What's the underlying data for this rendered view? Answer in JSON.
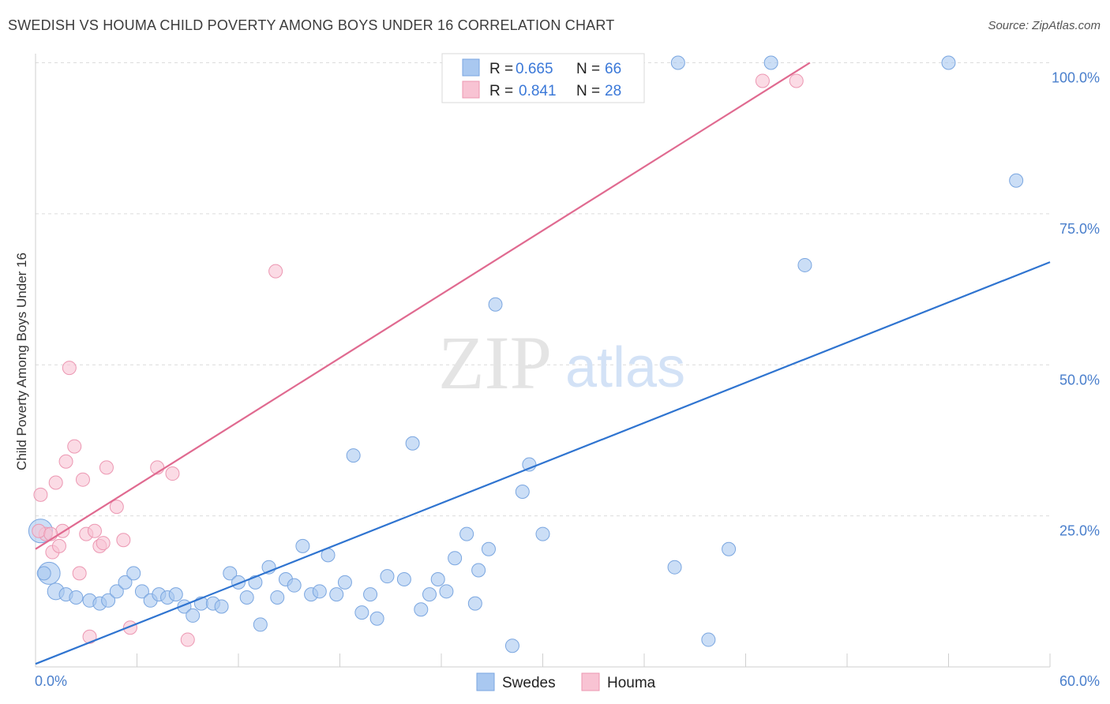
{
  "title": "SWEDISH VS HOUMA CHILD POVERTY AMONG BOYS UNDER 16 CORRELATION CHART",
  "source": "Source: ZipAtlas.com",
  "watermark": {
    "zip": "ZIP",
    "atlas": "atlas"
  },
  "chart_data": {
    "type": "scatter",
    "xlabel": "",
    "ylabel": "Child Poverty Among Boys Under 16",
    "xlim": [
      0,
      60
    ],
    "ylim": [
      0,
      100
    ],
    "x_tick_labels": [
      "0.0%",
      "60.0%"
    ],
    "y_ticks": [
      25,
      50,
      75,
      100
    ],
    "y_tick_labels": [
      "25.0%",
      "50.0%",
      "75.0%",
      "100.0%"
    ],
    "grid": true,
    "legend_position": "top-center",
    "bottom_legend": [
      "Swedes",
      "Houma"
    ],
    "series": [
      {
        "name": "Swedes",
        "color": "#a9c8f0",
        "stroke": "#7aa6e0",
        "line_color": "#2f74d0",
        "r": "0.665",
        "n": "66",
        "trend": {
          "x": [
            0,
            60
          ],
          "y": [
            0.5,
            67
          ]
        },
        "points": [
          [
            0.3,
            22.5
          ],
          [
            0.8,
            15.5
          ],
          [
            1.2,
            12.5
          ],
          [
            1.8,
            12.0
          ],
          [
            2.4,
            11.5
          ],
          [
            3.2,
            11.0
          ],
          [
            3.8,
            10.5
          ],
          [
            4.3,
            11.0
          ],
          [
            4.8,
            12.5
          ],
          [
            5.3,
            14.0
          ],
          [
            5.8,
            15.5
          ],
          [
            6.3,
            12.5
          ],
          [
            6.8,
            11.0
          ],
          [
            7.3,
            12.0
          ],
          [
            7.8,
            11.5
          ],
          [
            8.3,
            12.0
          ],
          [
            8.8,
            10.0
          ],
          [
            9.3,
            8.5
          ],
          [
            9.8,
            10.5
          ],
          [
            10.5,
            10.5
          ],
          [
            11.0,
            10.0
          ],
          [
            11.5,
            15.5
          ],
          [
            12.0,
            14.0
          ],
          [
            12.5,
            11.5
          ],
          [
            13.0,
            14.0
          ],
          [
            13.3,
            7.0
          ],
          [
            13.8,
            16.5
          ],
          [
            14.3,
            11.5
          ],
          [
            14.8,
            14.5
          ],
          [
            15.3,
            13.5
          ],
          [
            15.8,
            20.0
          ],
          [
            16.3,
            12.0
          ],
          [
            16.8,
            12.5
          ],
          [
            17.3,
            18.5
          ],
          [
            17.8,
            12.0
          ],
          [
            18.3,
            14.0
          ],
          [
            18.8,
            35.0
          ],
          [
            19.3,
            9.0
          ],
          [
            19.8,
            12.0
          ],
          [
            20.2,
            8.0
          ],
          [
            20.8,
            15.0
          ],
          [
            21.8,
            14.5
          ],
          [
            22.3,
            37.0
          ],
          [
            22.8,
            9.5
          ],
          [
            23.3,
            12.0
          ],
          [
            23.8,
            14.5
          ],
          [
            24.3,
            12.5
          ],
          [
            24.8,
            18.0
          ],
          [
            25.5,
            22.0
          ],
          [
            26.0,
            10.5
          ],
          [
            26.2,
            16.0
          ],
          [
            26.8,
            19.5
          ],
          [
            27.2,
            60.0
          ],
          [
            28.2,
            3.5
          ],
          [
            28.8,
            29.0
          ],
          [
            29.2,
            33.5
          ],
          [
            30.0,
            22.0
          ],
          [
            37.8,
            16.5
          ],
          [
            38.0,
            100.0
          ],
          [
            39.8,
            4.5
          ],
          [
            41.0,
            19.5
          ],
          [
            43.5,
            100.0
          ],
          [
            45.5,
            66.5
          ],
          [
            54.0,
            100.0
          ],
          [
            58.0,
            80.5
          ],
          [
            0.5,
            15.5
          ]
        ]
      },
      {
        "name": "Houma",
        "color": "#f8c3d3",
        "stroke": "#ec97b2",
        "line_color": "#e06a90",
        "r": "0.841",
        "n": "28",
        "trend": {
          "x": [
            0,
            45.8
          ],
          "y": [
            19.5,
            100
          ]
        },
        "points": [
          [
            0.3,
            28.5
          ],
          [
            0.6,
            22.0
          ],
          [
            1.0,
            19.0
          ],
          [
            1.2,
            30.5
          ],
          [
            1.4,
            20.0
          ],
          [
            1.6,
            22.5
          ],
          [
            1.8,
            34.0
          ],
          [
            2.0,
            49.5
          ],
          [
            2.3,
            36.5
          ],
          [
            2.6,
            15.5
          ],
          [
            2.8,
            31.0
          ],
          [
            3.0,
            22.0
          ],
          [
            3.2,
            5.0
          ],
          [
            3.5,
            22.5
          ],
          [
            3.8,
            20.0
          ],
          [
            4.0,
            20.5
          ],
          [
            4.2,
            33.0
          ],
          [
            4.8,
            26.5
          ],
          [
            5.2,
            21.0
          ],
          [
            5.6,
            6.5
          ],
          [
            7.2,
            33.0
          ],
          [
            8.1,
            32.0
          ],
          [
            9.0,
            4.5
          ],
          [
            14.2,
            65.5
          ],
          [
            43.0,
            97.0
          ],
          [
            45.0,
            97.0
          ],
          [
            0.2,
            22.5
          ],
          [
            0.9,
            22.0
          ]
        ]
      }
    ]
  }
}
